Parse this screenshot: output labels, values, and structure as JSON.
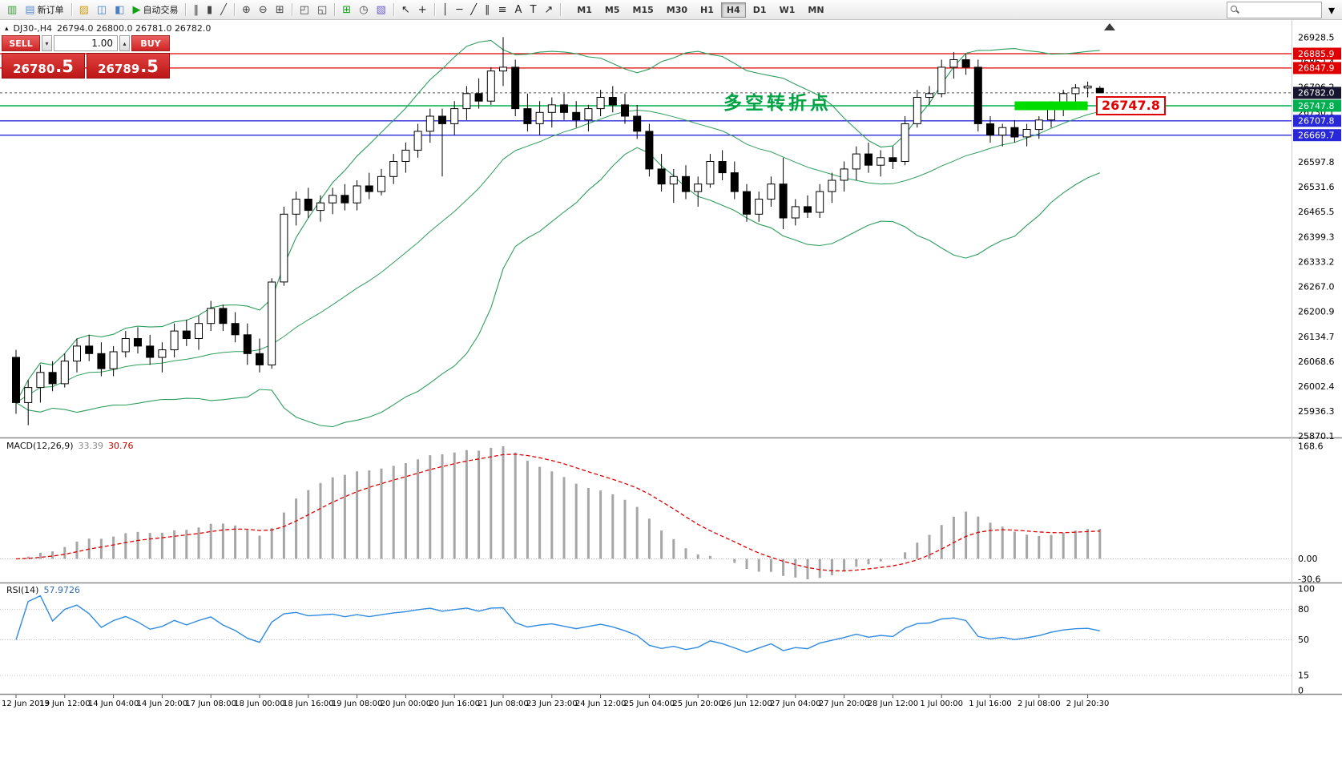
{
  "toolbar": {
    "items": [
      {
        "kind": "icon",
        "name": "chart-window-icon",
        "glyph": "▥",
        "color": "#3c9a3c"
      },
      {
        "kind": "labeled",
        "name": "new-order-button",
        "icon": "new-order-icon",
        "glyph": "▤",
        "color": "#5b8bd0",
        "label": "新订单"
      },
      {
        "kind": "sep"
      },
      {
        "kind": "icon",
        "name": "profiles-icon",
        "glyph": "▨",
        "color": "#d4a017"
      },
      {
        "kind": "icon",
        "name": "market-watch-icon",
        "glyph": "◫",
        "color": "#4a7fbf"
      },
      {
        "kind": "icon",
        "name": "navigator-icon",
        "glyph": "◧",
        "color": "#4a7fbf"
      },
      {
        "kind": "labeled",
        "name": "autotrading-button",
        "icon": "autotrading-icon",
        "glyph": "▶",
        "color": "#14a014",
        "label": "自动交易"
      },
      {
        "kind": "sep"
      },
      {
        "kind": "icon",
        "name": "bar-chart-icon",
        "glyph": "‖",
        "color": "#444444"
      },
      {
        "kind": "icon",
        "name": "candlestick-chart-icon",
        "glyph": "▮",
        "color": "#444444"
      },
      {
        "kind": "icon",
        "name": "line-chart-icon",
        "glyph": "╱",
        "color": "#444444"
      },
      {
        "kind": "sep"
      },
      {
        "kind": "icon",
        "name": "zoom-in-icon",
        "glyph": "⊕",
        "color": "#444444"
      },
      {
        "kind": "icon",
        "name": "zoom-out-icon",
        "glyph": "⊖",
        "color": "#444444"
      },
      {
        "kind": "icon",
        "name": "tile-windows-icon",
        "glyph": "⊞",
        "color": "#444444"
      },
      {
        "kind": "sep"
      },
      {
        "kind": "icon",
        "name": "cascade-windows-icon",
        "glyph": "◰",
        "color": "#444444"
      },
      {
        "kind": "icon",
        "name": "arrange-windows-icon",
        "glyph": "◱",
        "color": "#444444"
      },
      {
        "kind": "sep"
      },
      {
        "kind": "icon",
        "name": "new-chart-icon",
        "glyph": "⊞",
        "color": "#14a014"
      },
      {
        "kind": "icon",
        "name": "period-icon",
        "glyph": "◷",
        "color": "#444444"
      },
      {
        "kind": "icon",
        "name": "template-icon",
        "glyph": "▧",
        "color": "#6a5acd"
      },
      {
        "kind": "sep"
      },
      {
        "kind": "icon",
        "name": "cursor-icon",
        "glyph": "↖",
        "color": "#222222"
      },
      {
        "kind": "icon",
        "name": "crosshair-icon",
        "glyph": "+",
        "color": "#222222"
      },
      {
        "kind": "sep"
      },
      {
        "kind": "icon",
        "name": "vertical-line-icon",
        "glyph": "│",
        "color": "#222222"
      },
      {
        "kind": "icon",
        "name": "horizontal-line-icon",
        "glyph": "─",
        "color": "#222222"
      },
      {
        "kind": "icon",
        "name": "trendline-icon",
        "glyph": "╱",
        "color": "#222222"
      },
      {
        "kind": "icon",
        "name": "channel-icon",
        "glyph": "∥",
        "color": "#222222"
      },
      {
        "kind": "icon",
        "name": "fibonacci-icon",
        "glyph": "≡",
        "color": "#222222"
      },
      {
        "kind": "icon",
        "name": "text-icon",
        "glyph": "A",
        "color": "#222222"
      },
      {
        "kind": "icon",
        "name": "label-icon",
        "glyph": "T",
        "color": "#222222"
      },
      {
        "kind": "icon",
        "name": "arrow-tools-icon",
        "glyph": "↗",
        "color": "#222222"
      },
      {
        "kind": "sep"
      }
    ],
    "timeframes": [
      "M1",
      "M5",
      "M15",
      "M30",
      "H1",
      "H4",
      "D1",
      "W1",
      "MN"
    ],
    "active_timeframe": "H4",
    "search": {
      "value": "",
      "caret_glyph": "▾"
    }
  },
  "chart_header": {
    "toggle_glyph": "▴",
    "symbol": "DJ30-,H4",
    "ohlc": "26794.0 26800.0 26781.0 26782.0"
  },
  "trade_panel": {
    "sell_label": "SELL",
    "buy_label": "BUY",
    "volume": "1.00",
    "step_down_glyph": "▾",
    "step_up_glyph": "▴",
    "sell_price_main": "26780",
    "sell_price_frac": ".5",
    "buy_price_main": "26789",
    "buy_price_frac": ".5"
  },
  "indicators": {
    "macd_name": "MACD(12,26,9)",
    "macd_value_main": "33.39",
    "macd_value_signal": "30.76",
    "rsi_name": "RSI(14)",
    "rsi_value": "57.9726"
  },
  "annotation": {
    "text": "多空转折点",
    "callout_price": "26747.8"
  },
  "chart_data": {
    "type": "candlestick",
    "symbol": "DJ30-",
    "timeframe": "H4",
    "ylim": [
      25869.5,
      26928.5
    ],
    "label_every": 4,
    "candles": [
      [
        26080,
        26100,
        25930,
        25960
      ],
      [
        25960,
        26020,
        25900,
        26000
      ],
      [
        26000,
        26060,
        25960,
        26040
      ],
      [
        26040,
        26070,
        25990,
        26010
      ],
      [
        26010,
        26090,
        26000,
        26070
      ],
      [
        26070,
        26130,
        26040,
        26110
      ],
      [
        26110,
        26140,
        26070,
        26090
      ],
      [
        26090,
        26120,
        26030,
        26050
      ],
      [
        26050,
        26110,
        26030,
        26095
      ],
      [
        26095,
        26150,
        26080,
        26130
      ],
      [
        26130,
        26160,
        26090,
        26110
      ],
      [
        26110,
        26140,
        26060,
        26080
      ],
      [
        26080,
        26120,
        26040,
        26100
      ],
      [
        26100,
        26170,
        26080,
        26150
      ],
      [
        26150,
        26180,
        26110,
        26130
      ],
      [
        26130,
        26190,
        26100,
        26170
      ],
      [
        26170,
        26230,
        26150,
        26210
      ],
      [
        26210,
        26220,
        26150,
        26170
      ],
      [
        26170,
        26200,
        26120,
        26140
      ],
      [
        26140,
        26170,
        26060,
        26090
      ],
      [
        26090,
        26130,
        26040,
        26060
      ],
      [
        26060,
        26290,
        26050,
        26280
      ],
      [
        26280,
        26480,
        26270,
        26460
      ],
      [
        26460,
        26520,
        26430,
        26500
      ],
      [
        26500,
        26530,
        26450,
        26470
      ],
      [
        26470,
        26510,
        26440,
        26490
      ],
      [
        26490,
        26530,
        26460,
        26510
      ],
      [
        26510,
        26540,
        26470,
        26490
      ],
      [
        26490,
        26550,
        26470,
        26535
      ],
      [
        26535,
        26570,
        26500,
        26520
      ],
      [
        26520,
        26580,
        26510,
        26560
      ],
      [
        26560,
        26620,
        26540,
        26600
      ],
      [
        26600,
        26650,
        26570,
        26630
      ],
      [
        26630,
        26700,
        26610,
        26680
      ],
      [
        26680,
        26740,
        26650,
        26720
      ],
      [
        26720,
        26740,
        26560,
        26700
      ],
      [
        26700,
        26760,
        26670,
        26740
      ],
      [
        26740,
        26800,
        26710,
        26780
      ],
      [
        26780,
        26820,
        26740,
        26760
      ],
      [
        26760,
        26850,
        26750,
        26840
      ],
      [
        26840,
        26930,
        26800,
        26850
      ],
      [
        26850,
        26870,
        26720,
        26740
      ],
      [
        26740,
        26780,
        26680,
        26700
      ],
      [
        26700,
        26760,
        26670,
        26730
      ],
      [
        26730,
        26770,
        26690,
        26750
      ],
      [
        26750,
        26780,
        26710,
        26730
      ],
      [
        26730,
        26760,
        26690,
        26710
      ],
      [
        26710,
        26750,
        26680,
        26740
      ],
      [
        26740,
        26790,
        26720,
        26770
      ],
      [
        26770,
        26800,
        26730,
        26750
      ],
      [
        26750,
        26780,
        26700,
        26720
      ],
      [
        26720,
        26750,
        26660,
        26680
      ],
      [
        26680,
        26700,
        26560,
        26580
      ],
      [
        26580,
        26620,
        26520,
        26540
      ],
      [
        26540,
        26580,
        26490,
        26560
      ],
      [
        26560,
        26590,
        26500,
        26520
      ],
      [
        26520,
        26560,
        26480,
        26540
      ],
      [
        26540,
        26620,
        26530,
        26600
      ],
      [
        26600,
        26630,
        26550,
        26570
      ],
      [
        26570,
        26600,
        26500,
        26520
      ],
      [
        26520,
        26540,
        26440,
        26460
      ],
      [
        26460,
        26520,
        26440,
        26500
      ],
      [
        26500,
        26560,
        26480,
        26540
      ],
      [
        26540,
        26610,
        26420,
        26450
      ],
      [
        26450,
        26500,
        26430,
        26480
      ],
      [
        26480,
        26510,
        26450,
        26465
      ],
      [
        26465,
        26540,
        26450,
        26520
      ],
      [
        26520,
        26570,
        26490,
        26550
      ],
      [
        26550,
        26600,
        26520,
        26580
      ],
      [
        26580,
        26640,
        26550,
        26620
      ],
      [
        26620,
        26650,
        26570,
        26590
      ],
      [
        26590,
        26630,
        26560,
        26610
      ],
      [
        26610,
        26640,
        26580,
        26600
      ],
      [
        26600,
        26720,
        26590,
        26700
      ],
      [
        26700,
        26790,
        26690,
        26770
      ],
      [
        26770,
        26800,
        26750,
        26780
      ],
      [
        26780,
        26870,
        26770,
        26850
      ],
      [
        26850,
        26890,
        26820,
        26870
      ],
      [
        26870,
        26885,
        26830,
        26850
      ],
      [
        26850,
        26870,
        26680,
        26700
      ],
      [
        26700,
        26720,
        26650,
        26670
      ],
      [
        26670,
        26700,
        26640,
        26690
      ],
      [
        26690,
        26710,
        26650,
        26665
      ],
      [
        26665,
        26700,
        26640,
        26685
      ],
      [
        26685,
        26720,
        26660,
        26710
      ],
      [
        26710,
        26760,
        26690,
        26750
      ],
      [
        26750,
        26790,
        26720,
        26780
      ],
      [
        26780,
        26805,
        26750,
        26795
      ],
      [
        26795,
        26812,
        26770,
        26800
      ],
      [
        26794,
        26800,
        26781,
        26782
      ]
    ],
    "hlines": [
      {
        "price": 26885.9,
        "color": "#e00000",
        "width": 1.2
      },
      {
        "price": 26847.9,
        "color": "#e00000",
        "width": 1.2
      },
      {
        "price": 26782.0,
        "color": "#555555",
        "width": 1,
        "dash": "3 3"
      },
      {
        "price": 26747.8,
        "color": "#00b050",
        "width": 1.6
      },
      {
        "price": 26707.8,
        "color": "#2828d8",
        "width": 1.4
      },
      {
        "price": 26669.7,
        "color": "#2828d8",
        "width": 1.4
      }
    ],
    "highlight_rect": {
      "from": 82,
      "to": 88,
      "price": 26747.8,
      "color": "#00dc00"
    },
    "y_axis_labels": [
      "26928.5",
      "26862.4",
      "26796.2",
      "26730.1",
      "26663.9",
      "26597.8",
      "26531.6",
      "26465.5",
      "26399.3",
      "26333.2",
      "26267.0",
      "26200.9",
      "26134.7",
      "26068.6",
      "26002.4",
      "25936.3",
      "25870.1"
    ],
    "y_axis_tags": [
      {
        "price": 26885.9,
        "text": "26885.9",
        "color": "#e00000"
      },
      {
        "price": 26847.9,
        "text": "26847.9",
        "color": "#e00000"
      },
      {
        "price": 26782.0,
        "text": "26782.0",
        "color": "#15152f"
      },
      {
        "price": 26747.8,
        "text": "26747.8",
        "color": "#00b050"
      },
      {
        "price": 26707.8,
        "text": "26707.8",
        "color": "#2828d8"
      },
      {
        "price": 26669.7,
        "text": "26669.7",
        "color": "#2828d8"
      }
    ],
    "x_labels": [
      "12 Jun 2019",
      "13 Jun 12:00",
      "14 Jun 04:00",
      "14 Jun 20:00",
      "17 Jun 08:00",
      "18 Jun 00:00",
      "18 Jun 16:00",
      "19 Jun 08:00",
      "20 Jun 00:00",
      "20 Jun 16:00",
      "21 Jun 08:00",
      "23 Jun 23:00",
      "24 Jun 12:00",
      "25 Jun 04:00",
      "25 Jun 20:00",
      "26 Jun 12:00",
      "27 Jun 04:00",
      "27 Jun 20:00",
      "28 Jun 12:00",
      "1 Jul 00:00",
      "1 Jul 16:00",
      "2 Jul 08:00",
      "2 Jul 20:30"
    ],
    "indicators": {
      "bollinger": {
        "period": 20,
        "deviation": 2,
        "color": "#2e9e5b"
      },
      "macd": {
        "fast": 12,
        "slow": 26,
        "signal": 9,
        "value": "33.39",
        "signal_value": "30.76",
        "scale": [
          "168.6",
          "0.00",
          "-30.6"
        ]
      },
      "rsi": {
        "period": 14,
        "value": "57.9726",
        "scale": [
          "100",
          "80",
          "50",
          "15",
          "0"
        ],
        "levels": [
          80,
          50,
          15
        ]
      }
    }
  }
}
